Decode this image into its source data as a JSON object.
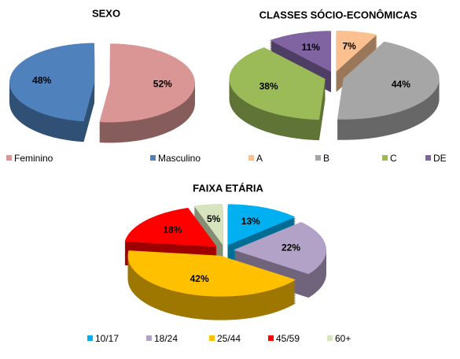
{
  "chart_data": [
    {
      "type": "pie",
      "title": "SEXO",
      "categories": [
        "Feminino",
        "Masculino"
      ],
      "values": [
        52,
        48
      ],
      "value_labels": [
        "52%",
        "48%"
      ],
      "colors": [
        "#d99694",
        "#4f81bd"
      ]
    },
    {
      "type": "pie",
      "title": "CLASSES SÓCIO-ECONÔMICAS",
      "categories": [
        "A",
        "B",
        "C",
        "DE"
      ],
      "values": [
        7,
        44,
        38,
        11
      ],
      "value_labels": [
        "7%",
        "44%",
        "38%",
        "11%"
      ],
      "colors": [
        "#fac090",
        "#a6a6a6",
        "#9bbb59",
        "#8064a2"
      ]
    },
    {
      "type": "pie",
      "title": "FAIXA ETÁRIA",
      "categories": [
        "10/17",
        "18/24",
        "25/44",
        "45/59",
        "60+"
      ],
      "values": [
        13,
        22,
        42,
        18,
        5
      ],
      "value_labels": [
        "13%",
        "22%",
        "42%",
        "18%",
        "5%"
      ],
      "colors": [
        "#00b0f0",
        "#b3a2c7",
        "#ffc000",
        "#ff0000",
        "#d7e4bd"
      ]
    }
  ]
}
